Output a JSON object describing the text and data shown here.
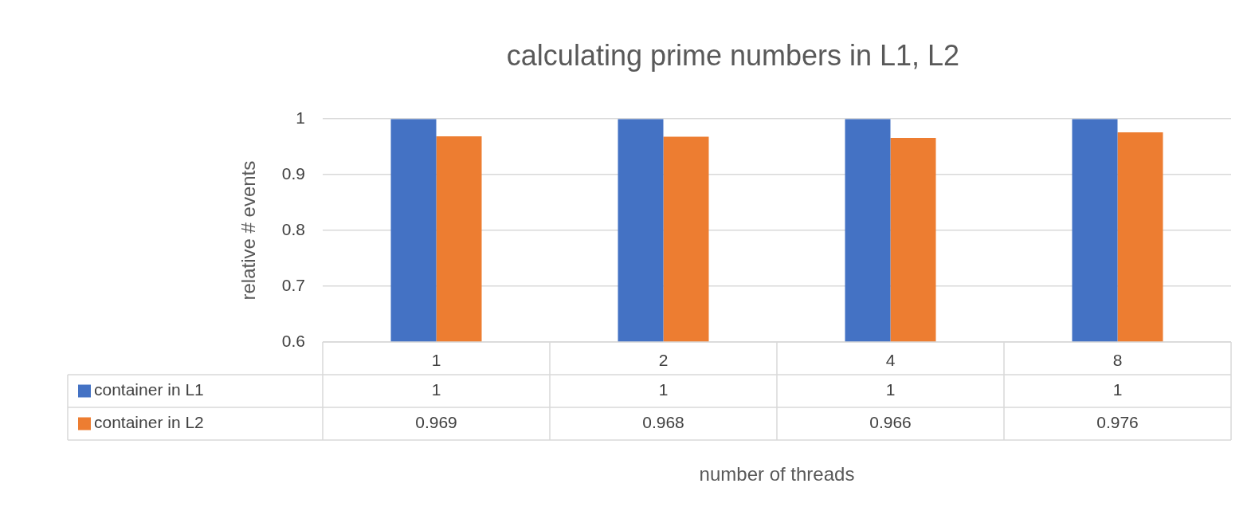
{
  "chart_data": {
    "type": "bar",
    "title": "calculating prime numbers in L1, L2",
    "xlabel": "number of threads",
    "ylabel": "relative # events",
    "categories": [
      "1",
      "2",
      "4",
      "8"
    ],
    "series": [
      {
        "name": "container in L1",
        "color": "#4472c4",
        "values": [
          1,
          1,
          1,
          1
        ]
      },
      {
        "name": "container in L2",
        "color": "#ed7d31",
        "values": [
          0.969,
          0.968,
          0.966,
          0.976
        ]
      }
    ],
    "ylim": [
      0.6,
      1
    ],
    "yticks": [
      0.6,
      0.7,
      0.8,
      0.9,
      1
    ],
    "grid": "y",
    "legend": "bottom",
    "data_labels": true
  }
}
